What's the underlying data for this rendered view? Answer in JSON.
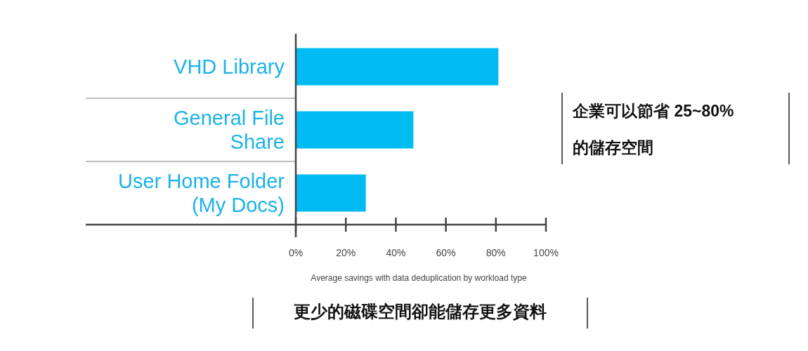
{
  "chart_data": {
    "type": "bar",
    "orientation": "horizontal",
    "categories": [
      "VHD Library",
      "General File\nShare",
      "User Home Folder\n(My Docs)"
    ],
    "values": [
      81,
      47,
      28
    ],
    "color": "#00bcf2",
    "xlim": [
      0,
      100
    ],
    "xticks": [
      {
        "value": 0,
        "label": "0%"
      },
      {
        "value": 20,
        "label": "20%"
      },
      {
        "value": 40,
        "label": "40%"
      },
      {
        "value": 60,
        "label": "60%"
      },
      {
        "value": 80,
        "label": "80%"
      },
      {
        "value": 100,
        "label": "100%"
      }
    ],
    "xlabel": "Average savings with data deduplication by workload type",
    "grid": false,
    "annotations": [
      "企業可以節省 25~80%\n的儲存空間",
      "更少的磁碟空間卻能儲存更多資料"
    ]
  }
}
